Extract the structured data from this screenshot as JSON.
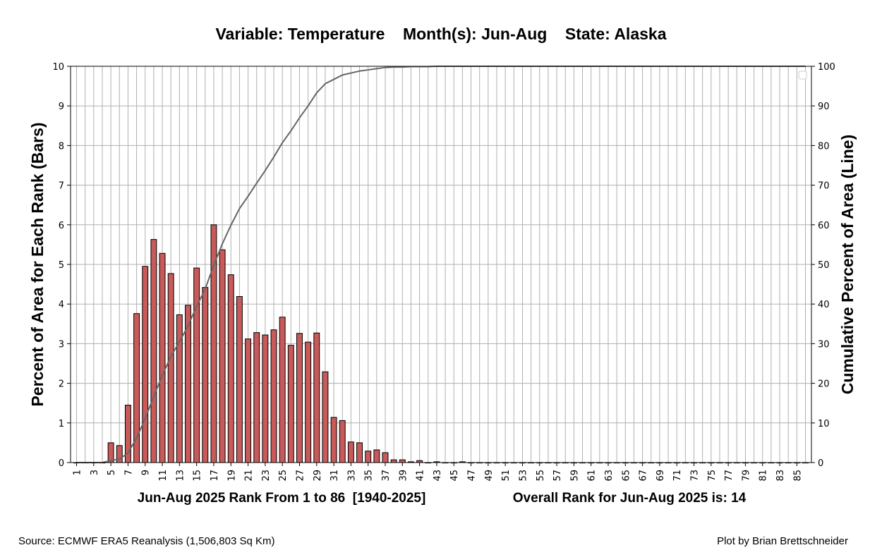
{
  "chart_data": {
    "type": "bar",
    "title": "Variable: Temperature    Month(s): Jun-Aug    State: Alaska",
    "ylabel": "Percent of Area for Each Rank (Bars)",
    "y2label": "Cumulative Percent of Area (Line)",
    "xlabel_left": "Jun-Aug 2025 Rank From 1 to 86  [1940-2025]",
    "xlabel_right": "Overall Rank for Jun-Aug 2025 is: 14",
    "xlim": [
      1,
      86
    ],
    "ylim": [
      0,
      10
    ],
    "y2lim": [
      0,
      100
    ],
    "y_ticks": [
      "0",
      "1",
      "2",
      "3",
      "4",
      "5",
      "6",
      "7",
      "8",
      "9",
      "10"
    ],
    "y2_ticks": [
      "0",
      "10",
      "20",
      "30",
      "40",
      "50",
      "60",
      "70",
      "80",
      "90",
      "100"
    ],
    "x_tick_labels": [
      "1",
      "3",
      "5",
      "7",
      "9",
      "11",
      "13",
      "15",
      "17",
      "19",
      "21",
      "23",
      "25",
      "27",
      "29",
      "31",
      "33",
      "35",
      "37",
      "39",
      "41",
      "43",
      "45",
      "47",
      "49",
      "51",
      "53",
      "55",
      "57",
      "59",
      "61",
      "63",
      "65",
      "67",
      "69",
      "71",
      "73",
      "75",
      "77",
      "79",
      "81",
      "83",
      "85"
    ],
    "grid": true,
    "bar_color": "#c85a5a",
    "line_color": "#666666",
    "ranks": [
      1,
      2,
      3,
      4,
      5,
      6,
      7,
      8,
      9,
      10,
      11,
      12,
      13,
      14,
      15,
      16,
      17,
      18,
      19,
      20,
      21,
      22,
      23,
      24,
      25,
      26,
      27,
      28,
      29,
      30,
      31,
      32,
      33,
      34,
      35,
      36,
      37,
      38,
      39,
      40,
      41,
      42,
      43,
      44,
      45,
      46,
      47,
      48,
      49,
      50,
      51,
      52,
      53,
      54,
      55,
      56,
      57,
      58,
      59,
      60,
      61,
      62,
      63,
      64,
      65,
      66,
      67,
      68,
      69,
      70,
      71,
      72,
      73,
      74,
      75,
      76,
      77,
      78,
      79,
      80,
      81,
      82,
      83,
      84,
      85,
      86
    ],
    "bar_values": [
      0,
      0,
      0,
      0,
      0.5,
      0.43,
      1.45,
      3.76,
      4.95,
      5.63,
      5.28,
      4.77,
      3.73,
      3.97,
      4.91,
      4.42,
      6.0,
      5.37,
      4.74,
      4.19,
      3.12,
      3.28,
      3.22,
      3.35,
      3.67,
      2.96,
      3.26,
      3.04,
      3.27,
      2.29,
      1.14,
      1.06,
      0.52,
      0.5,
      0.29,
      0.32,
      0.25,
      0.07,
      0.07,
      0.02,
      0.05,
      0,
      0.02,
      0,
      0,
      0.02,
      0,
      0,
      0,
      0,
      0,
      0,
      0,
      0,
      0,
      0,
      0,
      0,
      0,
      0,
      0,
      0,
      0,
      0,
      0,
      0,
      0,
      0,
      0,
      0,
      0,
      0,
      0,
      0,
      0,
      0,
      0,
      0,
      0,
      0,
      0,
      0,
      0,
      0,
      0,
      0
    ],
    "cumulative_values": [
      0,
      0,
      0,
      0,
      0.5,
      0.9,
      2.4,
      6.2,
      11.1,
      16.7,
      22.0,
      26.8,
      30.5,
      34.5,
      39.4,
      43.8,
      49.8,
      55.2,
      59.9,
      64.1,
      67.2,
      70.5,
      73.7,
      77.1,
      80.7,
      83.7,
      87.0,
      90.0,
      93.3,
      95.6,
      96.7,
      97.8,
      98.3,
      98.8,
      99.1,
      99.4,
      99.7,
      99.8,
      99.8,
      99.9,
      99.9,
      99.9,
      100,
      100,
      100,
      100,
      100,
      100,
      100,
      100,
      100,
      100,
      100,
      100,
      100,
      100,
      100,
      100,
      100,
      100,
      100,
      100,
      100,
      100,
      100,
      100,
      100,
      100,
      100,
      100,
      100,
      100,
      100,
      100,
      100,
      100,
      100,
      100,
      100,
      100,
      100,
      100,
      100,
      100,
      100,
      100
    ]
  },
  "footer": {
    "source": "Source: ECMWF ERA5 Reanalysis (1,506,803 Sq Km)",
    "credit": "Plot by Brian Brettschneider"
  }
}
